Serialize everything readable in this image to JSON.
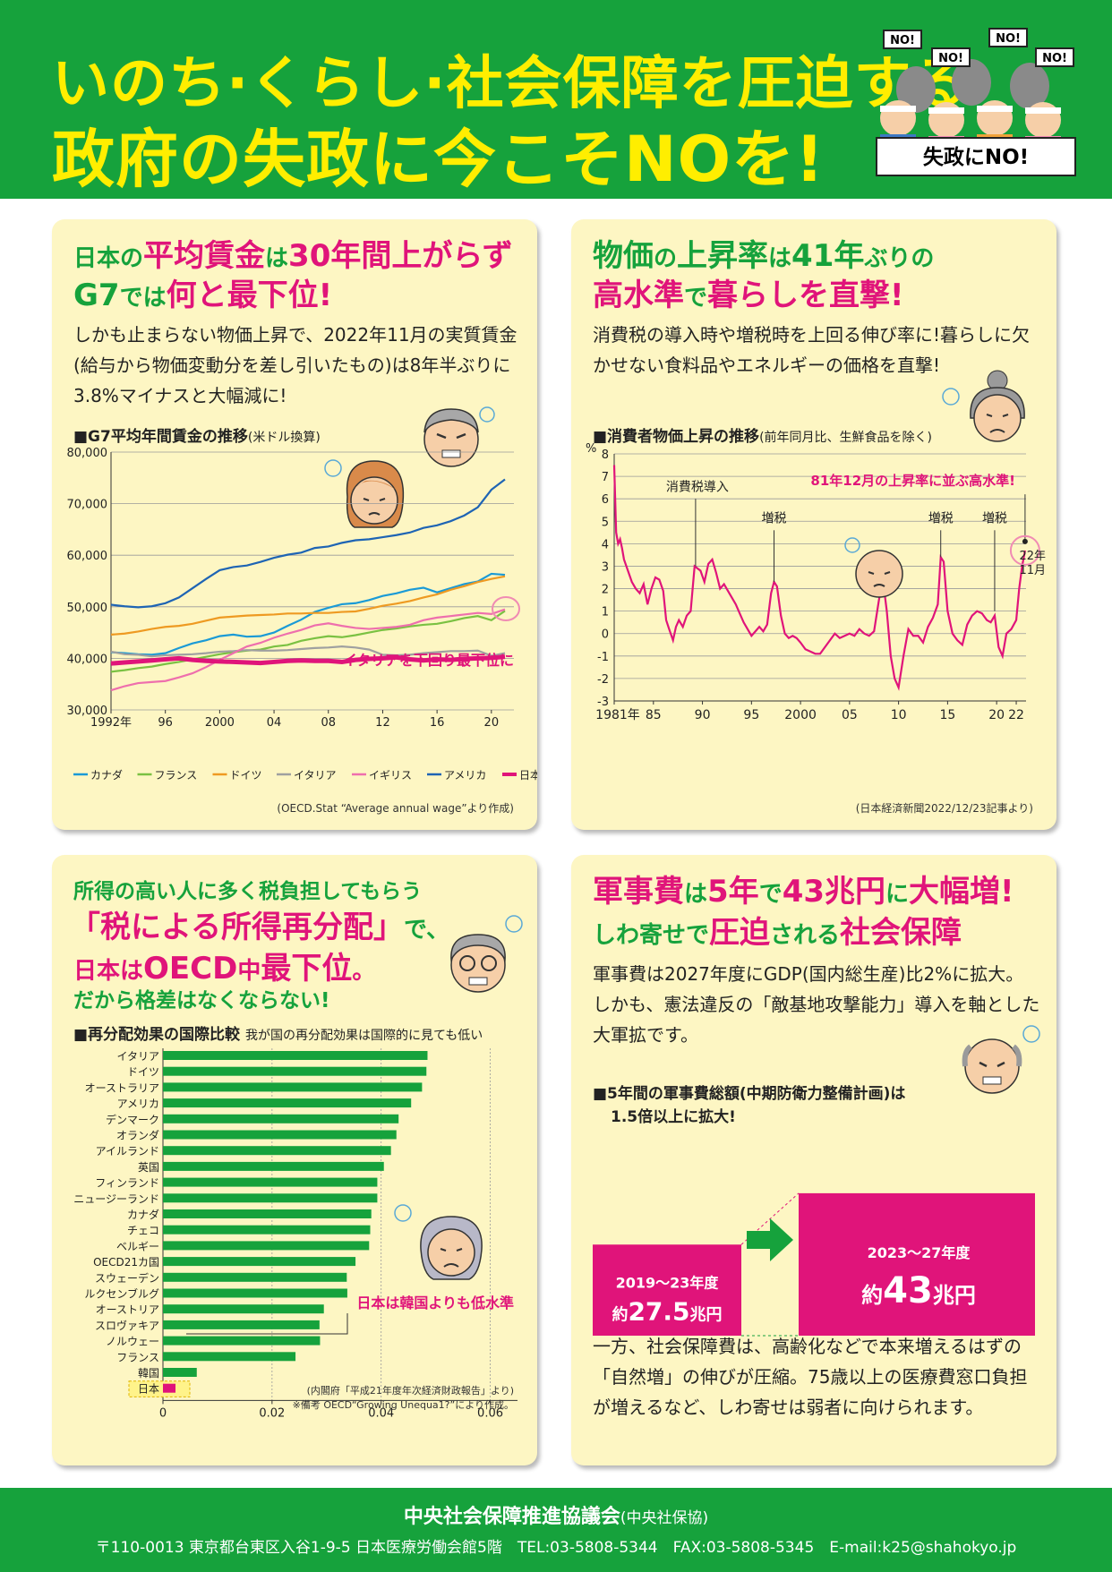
{
  "header": {
    "title_line1": "いのち·くらし·社会保障を圧迫する",
    "title_line2": "政府の失政に今こそNOを!",
    "sign_no": "NO!",
    "banner": "失政にNO!"
  },
  "colors": {
    "green": "#16a23c",
    "magenta": "#e0147a",
    "yellow": "#ffee00",
    "panel": "#fdf6c3"
  },
  "panel_wages": {
    "title_p1": "日本の",
    "title_p2": "平均賃金",
    "title_p3": "は",
    "title_p4": "30年間上がらず",
    "title_p5": "G7",
    "title_p6": "では",
    "title_p7": "何と最下位!",
    "body": "しかも止まらない物価上昇で、2022年11月の実質賃金(給与から物価変動分を差し引いたもの)は8年半ぶりに3.8%マイナスと大幅減に!",
    "chart_title": "■G7平均年間賃金の推移",
    "chart_unit": "(米ドル換算)",
    "annotation": "イタリアを下回り最下位に",
    "source": "(OECD.Stat “Average annual wage”より作成)"
  },
  "panel_prices": {
    "title_p1": "物価",
    "title_p2": "の",
    "title_p3": "上昇率",
    "title_p4": "は",
    "title_p5": "41年",
    "title_p6": "ぶりの",
    "title_p7": "高水準",
    "title_p8": "で",
    "title_p9": "暮らしを直撃!",
    "body": "消費税の導入時や増税時を上回る伸び率に!暮らしに欠かせない食料品やエネルギーの価格を直撃!",
    "chart_title": "■消費者物価上昇の推移",
    "chart_unit": "(前年同月比、生鮮食品を除く)",
    "source": "(日本経済新聞2022/12/23記事より)"
  },
  "panel_redistribution": {
    "title_line1": "所得の高い人に多く税負担してもらう",
    "title_p2": "「税による所得再分配」",
    "title_p3": "で、",
    "title_p4": "日本は",
    "title_p5": "OECD",
    "title_p6": "中",
    "title_p7": "最下位",
    "title_p8": "。",
    "title_line4": "だから格差はなくならない!",
    "chart_title": "■再分配効果の国際比較",
    "chart_subtitle": "我が国の再分配効果は国際的に見ても低い",
    "annotation": "日本は韓国よりも低水準",
    "source1": "(内閣府「平成21年度年次経済財政報告」より)",
    "source2": "※備考 OECD“Growing Unequa1?”により作成。"
  },
  "panel_military": {
    "title_p1": "軍事費",
    "title_p2": "は",
    "title_p3": "5年",
    "title_p4": "で",
    "title_p5": "43兆円",
    "title_p6": "に",
    "title_p7": "大幅増!",
    "title_p8": "しわ寄せで",
    "title_p9": "圧迫",
    "title_p10": "される",
    "title_p11": "社会保障",
    "body": "軍事費は2027年度にGDP(国内総生産)比2%に拡大。しかも、憲法違反の「敵基地攻撃能力」導入を軸とした大軍拡です。",
    "chart_title_line1": "■5年間の軍事費総額(中期防衛力整備計画)は",
    "chart_title_line2": "1.5倍以上に拡大!",
    "bottom_body": "一方、社会保障費は、高齢化などで本来増えるはずの「自然増」の伸びが圧縮。75歳以上の医療費窓口負担が増えるなど、しわ寄せは弱者に向けられます。"
  },
  "footer": {
    "org": "中央社会保障推進協議会",
    "org_short": "(中央社保協)",
    "address": "〒110-0013 東京都台東区入谷1-9-5 日本医療労働会館5階　TEL:03-5808-5344　FAX:03-5808-5345　E-mail:k25@shahokyo.jp"
  },
  "chart_data": [
    {
      "type": "line",
      "title": "■G7平均年間賃金の推移(米ドル換算)",
      "x": [
        1992,
        1993,
        1994,
        1995,
        1996,
        1997,
        1998,
        1999,
        2000,
        2001,
        2002,
        2003,
        2004,
        2005,
        2006,
        2007,
        2008,
        2009,
        2010,
        2011,
        2012,
        2013,
        2014,
        2015,
        2016,
        2017,
        2018,
        2019,
        2020,
        2021
      ],
      "x_tick_labels": [
        "1992年",
        "96",
        "2000",
        "04",
        "08",
        "12",
        "16",
        "20"
      ],
      "x_tick_values": [
        1992,
        1996,
        2000,
        2004,
        2008,
        2012,
        2016,
        2020
      ],
      "y_tick_labels": [
        "80,000",
        "70,000",
        "60,000",
        "50,000",
        "40,000",
        "30,000"
      ],
      "y_tick_values": [
        80000,
        70000,
        60000,
        50000,
        40000,
        30000
      ],
      "ylim": [
        30000,
        80000
      ],
      "xlim": [
        1992,
        2021
      ],
      "grid": true,
      "legend": "bottom",
      "series": [
        {
          "name": "カナダ",
          "color": "#1a9ad6",
          "values": [
            41200,
            41000,
            40800,
            40700,
            41000,
            42000,
            42900,
            43500,
            44300,
            44600,
            44200,
            44300,
            45000,
            46300,
            47500,
            49000,
            49800,
            50500,
            50700,
            51300,
            52100,
            52600,
            53300,
            53700,
            52800,
            53600,
            54400,
            54900,
            56400,
            56200
          ]
        },
        {
          "name": "フランス",
          "color": "#7ac142",
          "values": [
            37400,
            37700,
            38100,
            38400,
            38900,
            39300,
            39800,
            40300,
            40800,
            41200,
            41500,
            41700,
            42300,
            42600,
            43400,
            43900,
            44300,
            44100,
            44500,
            45000,
            45500,
            45800,
            46200,
            46500,
            46700,
            47200,
            47800,
            48200,
            47400,
            49200
          ]
        },
        {
          "name": "ドイツ",
          "color": "#ee9a22",
          "values": [
            44600,
            44800,
            45200,
            45700,
            46100,
            46300,
            46700,
            47300,
            47900,
            48100,
            48300,
            48400,
            48500,
            48700,
            48700,
            48800,
            48800,
            49000,
            49100,
            49600,
            50200,
            50600,
            51100,
            51800,
            52400,
            53300,
            54000,
            54800,
            55400,
            55900
          ]
        },
        {
          "name": "イタリア",
          "color": "#9fa0a0",
          "values": [
            41300,
            40800,
            40700,
            40400,
            40600,
            40700,
            40800,
            41000,
            41300,
            41400,
            41600,
            41500,
            41500,
            41600,
            41800,
            42000,
            42100,
            42300,
            42100,
            41700,
            40700,
            40600,
            40700,
            41000,
            41200,
            41400,
            41400,
            41500,
            40500,
            41000
          ]
        },
        {
          "name": "イギリス",
          "color": "#ee6fad",
          "values": [
            33800,
            34600,
            35200,
            35400,
            35600,
            36300,
            37100,
            38300,
            39700,
            41000,
            42300,
            43000,
            44000,
            44800,
            45500,
            46400,
            46800,
            46300,
            45900,
            45700,
            45900,
            46100,
            46500,
            47400,
            47900,
            48200,
            48500,
            48800,
            48600,
            49500
          ]
        },
        {
          "name": "アメリカ",
          "color": "#1e64b4",
          "values": [
            50400,
            50100,
            49900,
            50100,
            50700,
            51800,
            53600,
            55400,
            57100,
            57700,
            58000,
            58700,
            59500,
            60100,
            60500,
            61400,
            61700,
            62400,
            62900,
            63100,
            63500,
            63900,
            64400,
            65300,
            65800,
            66600,
            67700,
            69300,
            72700,
            74700
          ]
        },
        {
          "name": "日本",
          "color": "#e0147a",
          "values": [
            39000,
            39200,
            39400,
            39600,
            39800,
            40000,
            39700,
            39500,
            39400,
            39300,
            39200,
            39100,
            39300,
            39500,
            39600,
            39500,
            39500,
            39300,
            39700,
            39900,
            40000,
            40200,
            39800,
            39600,
            39800,
            39700,
            39900,
            40000,
            40100,
            40300
          ]
        }
      ],
      "annotation": "イタリアを下回り最下位に"
    },
    {
      "type": "line",
      "title": "■消費者物価上昇の推移(前年同月比、生鮮食品を除く)",
      "ylabel": "%",
      "ylim": [
        -3,
        8
      ],
      "xlim": [
        1981,
        2023
      ],
      "y_tick_values": [
        8,
        7,
        6,
        5,
        4,
        3,
        2,
        1,
        0,
        -1,
        -2,
        -3
      ],
      "y_tick_labels": [
        "8",
        "7",
        "6",
        "5",
        "4",
        "3",
        "2",
        "1",
        "0",
        "-1",
        "-2",
        "-3"
      ],
      "x_tick_labels": [
        "1981年",
        "85",
        "90",
        "95",
        "2000",
        "05",
        "10",
        "15",
        "20",
        "22"
      ],
      "x_tick_values": [
        1981,
        1985,
        1990,
        1995,
        2000,
        2005,
        2010,
        2015,
        2020,
        2022
      ],
      "grid": true,
      "series": [
        {
          "name": "",
          "color": "#e0147a",
          "x": [
            1981,
            1981.2,
            1981.4,
            1981.6,
            1981.8,
            1982,
            1982.4,
            1982.8,
            1983.2,
            1983.6,
            1984,
            1984.4,
            1984.8,
            1985.2,
            1985.6,
            1986,
            1986.3,
            1986.6,
            1987,
            1987.3,
            1987.6,
            1988,
            1988.4,
            1988.8,
            1989.2,
            1989.5,
            1989.8,
            1990.2,
            1990.6,
            1991,
            1991.4,
            1991.8,
            1992.2,
            1992.6,
            1993,
            1993.4,
            1993.8,
            1994.2,
            1994.6,
            1995,
            1995.4,
            1995.8,
            1996.2,
            1996.6,
            1997,
            1997.3,
            1997.6,
            1998,
            1998.4,
            1998.8,
            1999.2,
            1999.6,
            2000,
            2000.5,
            2001,
            2001.5,
            2002,
            2002.5,
            2003,
            2003.5,
            2004,
            2004.5,
            2005,
            2005.5,
            2006,
            2006.5,
            2007,
            2007.5,
            2008,
            2008.4,
            2008.8,
            2009.2,
            2009.6,
            2010,
            2010.5,
            2011,
            2011.5,
            2012,
            2012.5,
            2013,
            2013.5,
            2014,
            2014.3,
            2014.6,
            2015,
            2015.5,
            2016,
            2016.5,
            2017,
            2017.5,
            2018,
            2018.5,
            2019,
            2019.4,
            2019.8,
            2020.2,
            2020.6,
            2021,
            2021.5,
            2022,
            2022.3,
            2022.6,
            2022.9
          ],
          "values": [
            7.5,
            4.5,
            4.0,
            4.2,
            3.8,
            3.3,
            2.8,
            2.3,
            2.0,
            1.8,
            2.2,
            1.3,
            2.0,
            2.5,
            2.4,
            1.9,
            0.6,
            0.2,
            -0.3,
            0.3,
            0.6,
            0.3,
            0.8,
            1.0,
            3.0,
            2.9,
            2.8,
            2.3,
            3.1,
            3.3,
            2.7,
            2.0,
            2.2,
            1.9,
            1.6,
            1.3,
            0.9,
            0.5,
            0.2,
            -0.1,
            0.1,
            0.3,
            0.1,
            0.4,
            1.8,
            2.3,
            2.1,
            0.8,
            0.0,
            -0.2,
            -0.1,
            -0.2,
            -0.4,
            -0.7,
            -0.8,
            -0.9,
            -0.9,
            -0.6,
            -0.3,
            0.0,
            -0.2,
            -0.1,
            0.0,
            -0.1,
            0.2,
            0.0,
            -0.1,
            0.1,
            1.5,
            2.4,
            1.0,
            -1.0,
            -2.0,
            -2.4,
            -1.0,
            0.2,
            -0.1,
            -0.1,
            -0.4,
            0.3,
            0.7,
            1.3,
            3.4,
            3.2,
            1.0,
            0.0,
            -0.3,
            -0.5,
            0.4,
            0.8,
            1.0,
            0.9,
            0.6,
            0.5,
            0.8,
            -0.6,
            -1.0,
            0.0,
            0.2,
            0.6,
            2.0,
            3.0,
            3.7
          ]
        }
      ],
      "annotations": [
        {
          "text": "消費税導入",
          "x": 1989.3
        },
        {
          "text": "増税",
          "x": 1997.3
        },
        {
          "text": "増税",
          "x": 2014.3
        },
        {
          "text": "増税",
          "x": 2019.8
        },
        {
          "text": "81年12月の上昇率に並ぶ高水準!",
          "x": 2022.9
        },
        {
          "text": "22年",
          "x": 2022.9
        },
        {
          "text": "11月",
          "x": 2022.9
        }
      ]
    },
    {
      "type": "bar",
      "orientation": "horizontal",
      "title": "■再分配効果の国際比較",
      "categories": [
        "イタリア",
        "ドイツ",
        "オーストラリア",
        "アメリカ",
        "デンマーク",
        "オランダ",
        "アイルランド",
        "英国",
        "フィンランド",
        "ニュージーランド",
        "カナダ",
        "チェコ",
        "ベルギー",
        "OECD21カ国",
        "スウェーデン",
        "ルクセンブルグ",
        "オーストリア",
        "スロヴァキア",
        "ノルウェー",
        "フランス",
        "韓国",
        "日本"
      ],
      "values": [
        0.0485,
        0.0483,
        0.0475,
        0.0455,
        0.0432,
        0.0428,
        0.0418,
        0.0405,
        0.0393,
        0.0393,
        0.0382,
        0.038,
        0.0378,
        0.0353,
        0.0337,
        0.0338,
        0.0295,
        0.0287,
        0.0288,
        0.0243,
        0.0062,
        0.0023
      ],
      "xlim": [
        0,
        0.065
      ],
      "x_tick_values": [
        0,
        0.02,
        0.04,
        0.06
      ],
      "x_tick_labels": [
        "0",
        "0.02",
        "0.04",
        "0.06"
      ],
      "bar_color": "#16a23c",
      "highlight": {
        "category": "日本",
        "color": "#e0147a"
      },
      "annotation": "日本は韓国よりも低水準"
    },
    {
      "type": "bar",
      "title": "■5年間の軍事費総額(中期防衛力整備計画)は1.5倍以上に拡大!",
      "categories": [
        "2019～23年度",
        "2023～27年度"
      ],
      "values": [
        27.5,
        43
      ],
      "unit": "兆円",
      "value_prefix": "約",
      "bar_color": "#e0147a"
    }
  ]
}
